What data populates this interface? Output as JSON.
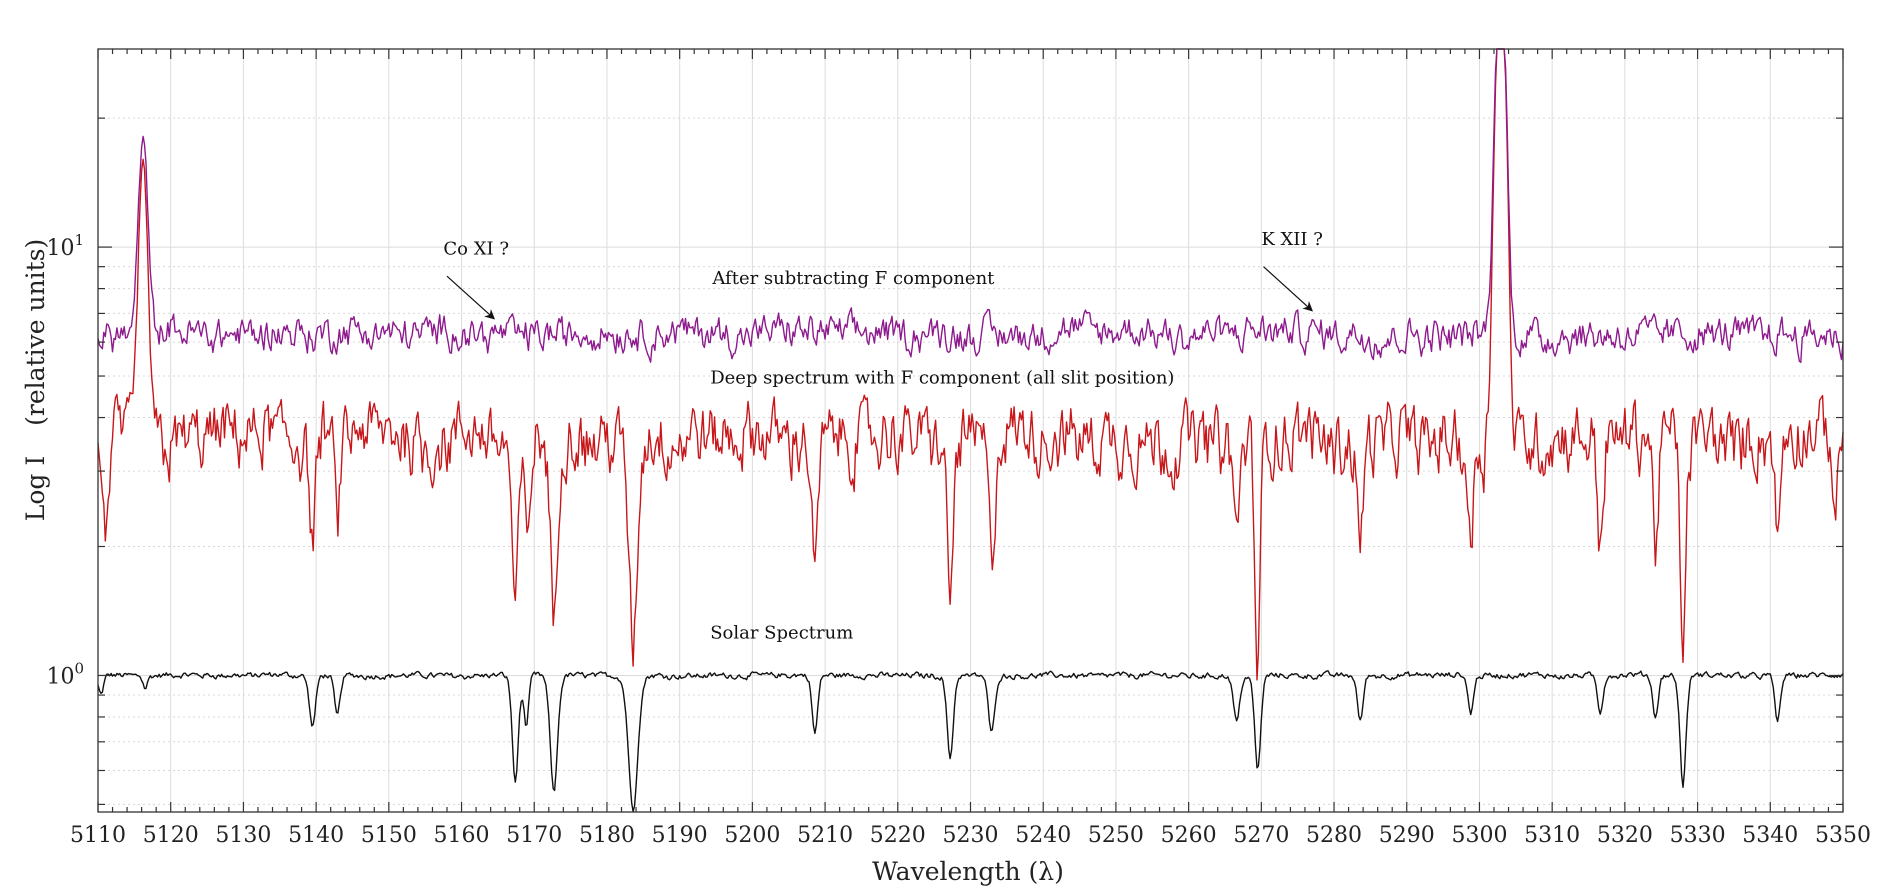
{
  "chart_data": {
    "type": "line",
    "title": "",
    "xlabel": "Wavelength (λ)",
    "ylabel_parts": [
      "Log I",
      "(relative units)"
    ],
    "scale": {
      "y": "log"
    },
    "xlim": [
      5110,
      5350
    ],
    "ylim": [
      0.48,
      29
    ],
    "grid": true,
    "x_ticks": [
      5110,
      5120,
      5130,
      5140,
      5150,
      5160,
      5170,
      5180,
      5190,
      5200,
      5210,
      5220,
      5230,
      5240,
      5250,
      5260,
      5270,
      5280,
      5290,
      5300,
      5310,
      5320,
      5330,
      5340,
      5350
    ],
    "y_ticks": [
      {
        "value": 1,
        "base": "10",
        "exp": "0"
      },
      {
        "value": 10,
        "base": "10",
        "exp": "1"
      }
    ],
    "series": [
      {
        "name": "After subtracting F component",
        "color": "#8e1a8e",
        "baseline": 6.3,
        "noise": 0.055,
        "lines": [],
        "emission": [
          {
            "center": 5116.2,
            "peak": 17.8,
            "width": 0.55
          },
          {
            "center": 5302.9,
            "peak": 45,
            "width": 0.6
          }
        ]
      },
      {
        "name": "Deep spectrum with F component (all slit position)",
        "color": "#c8171b",
        "baseline": 3.6,
        "noise": 0.11,
        "lines": [
          {
            "center": 5111.0,
            "depth": 0.42,
            "width": 0.4
          },
          {
            "center": 5139.5,
            "depth": 0.42,
            "width": 0.45
          },
          {
            "center": 5142.9,
            "depth": 0.38,
            "width": 0.4
          },
          {
            "center": 5167.4,
            "depth": 0.62,
            "width": 0.5
          },
          {
            "center": 5169.0,
            "depth": 0.45,
            "width": 0.4
          },
          {
            "center": 5172.7,
            "depth": 0.65,
            "width": 0.55
          },
          {
            "center": 5183.6,
            "depth": 0.68,
            "width": 0.7
          },
          {
            "center": 5208.6,
            "depth": 0.55,
            "width": 0.45
          },
          {
            "center": 5227.2,
            "depth": 0.58,
            "width": 0.5
          },
          {
            "center": 5232.9,
            "depth": 0.5,
            "width": 0.45
          },
          {
            "center": 5266.6,
            "depth": 0.4,
            "width": 0.5
          },
          {
            "center": 5269.5,
            "depth": 0.72,
            "width": 0.45
          },
          {
            "center": 5283.6,
            "depth": 0.45,
            "width": 0.4
          },
          {
            "center": 5298.8,
            "depth": 0.45,
            "width": 0.4
          },
          {
            "center": 5316.6,
            "depth": 0.42,
            "width": 0.4
          },
          {
            "center": 5324.2,
            "depth": 0.45,
            "width": 0.4
          },
          {
            "center": 5328.0,
            "depth": 0.7,
            "width": 0.45
          },
          {
            "center": 5341.0,
            "depth": 0.45,
            "width": 0.4
          },
          {
            "center": 5349.0,
            "depth": 0.3,
            "width": 0.4
          }
        ],
        "emission": [
          {
            "center": 5116.2,
            "peak": 15.2,
            "width": 0.55
          },
          {
            "center": 5302.9,
            "peak": 45,
            "width": 0.6
          }
        ]
      },
      {
        "name": "Solar Spectrum",
        "color": "#111111",
        "baseline": 1.0,
        "noise": 0.01,
        "lines": [
          {
            "center": 5110.4,
            "depth": 0.1,
            "width": 0.35
          },
          {
            "center": 5116.5,
            "depth": 0.06,
            "width": 0.3
          },
          {
            "center": 5139.5,
            "depth": 0.24,
            "width": 0.45
          },
          {
            "center": 5142.9,
            "depth": 0.2,
            "width": 0.4
          },
          {
            "center": 5167.4,
            "depth": 0.44,
            "width": 0.45
          },
          {
            "center": 5168.9,
            "depth": 0.24,
            "width": 0.35
          },
          {
            "center": 5172.7,
            "depth": 0.47,
            "width": 0.55
          },
          {
            "center": 5183.6,
            "depth": 0.52,
            "width": 0.7
          },
          {
            "center": 5208.6,
            "depth": 0.27,
            "width": 0.4
          },
          {
            "center": 5227.2,
            "depth": 0.36,
            "width": 0.45
          },
          {
            "center": 5232.9,
            "depth": 0.27,
            "width": 0.45
          },
          {
            "center": 5266.6,
            "depth": 0.22,
            "width": 0.45
          },
          {
            "center": 5269.5,
            "depth": 0.4,
            "width": 0.45
          },
          {
            "center": 5283.6,
            "depth": 0.22,
            "width": 0.4
          },
          {
            "center": 5298.8,
            "depth": 0.18,
            "width": 0.4
          },
          {
            "center": 5316.6,
            "depth": 0.18,
            "width": 0.4
          },
          {
            "center": 5324.2,
            "depth": 0.2,
            "width": 0.4
          },
          {
            "center": 5328.0,
            "depth": 0.45,
            "width": 0.45
          },
          {
            "center": 5341.0,
            "depth": 0.22,
            "width": 0.4
          }
        ],
        "emission": []
      }
    ],
    "annotations": [
      {
        "text": "Co XI ?",
        "text_at": [
          5157.5,
          9.6
        ],
        "arrow_from": [
          5158.0,
          8.55
        ],
        "arrow_to": [
          5164.5,
          6.8
        ]
      },
      {
        "text": "K XII ?",
        "text_at": [
          5270.0,
          10.1
        ],
        "arrow_from": [
          5270.3,
          9.0
        ],
        "arrow_to": [
          5277.0,
          7.1
        ]
      }
    ],
    "series_labels": [
      {
        "series": 0,
        "at": [
          5194.5,
          8.2
        ]
      },
      {
        "series": 1,
        "at": [
          5194.2,
          4.8
        ]
      },
      {
        "series": 2,
        "at": [
          5194.2,
          1.22
        ]
      }
    ]
  }
}
